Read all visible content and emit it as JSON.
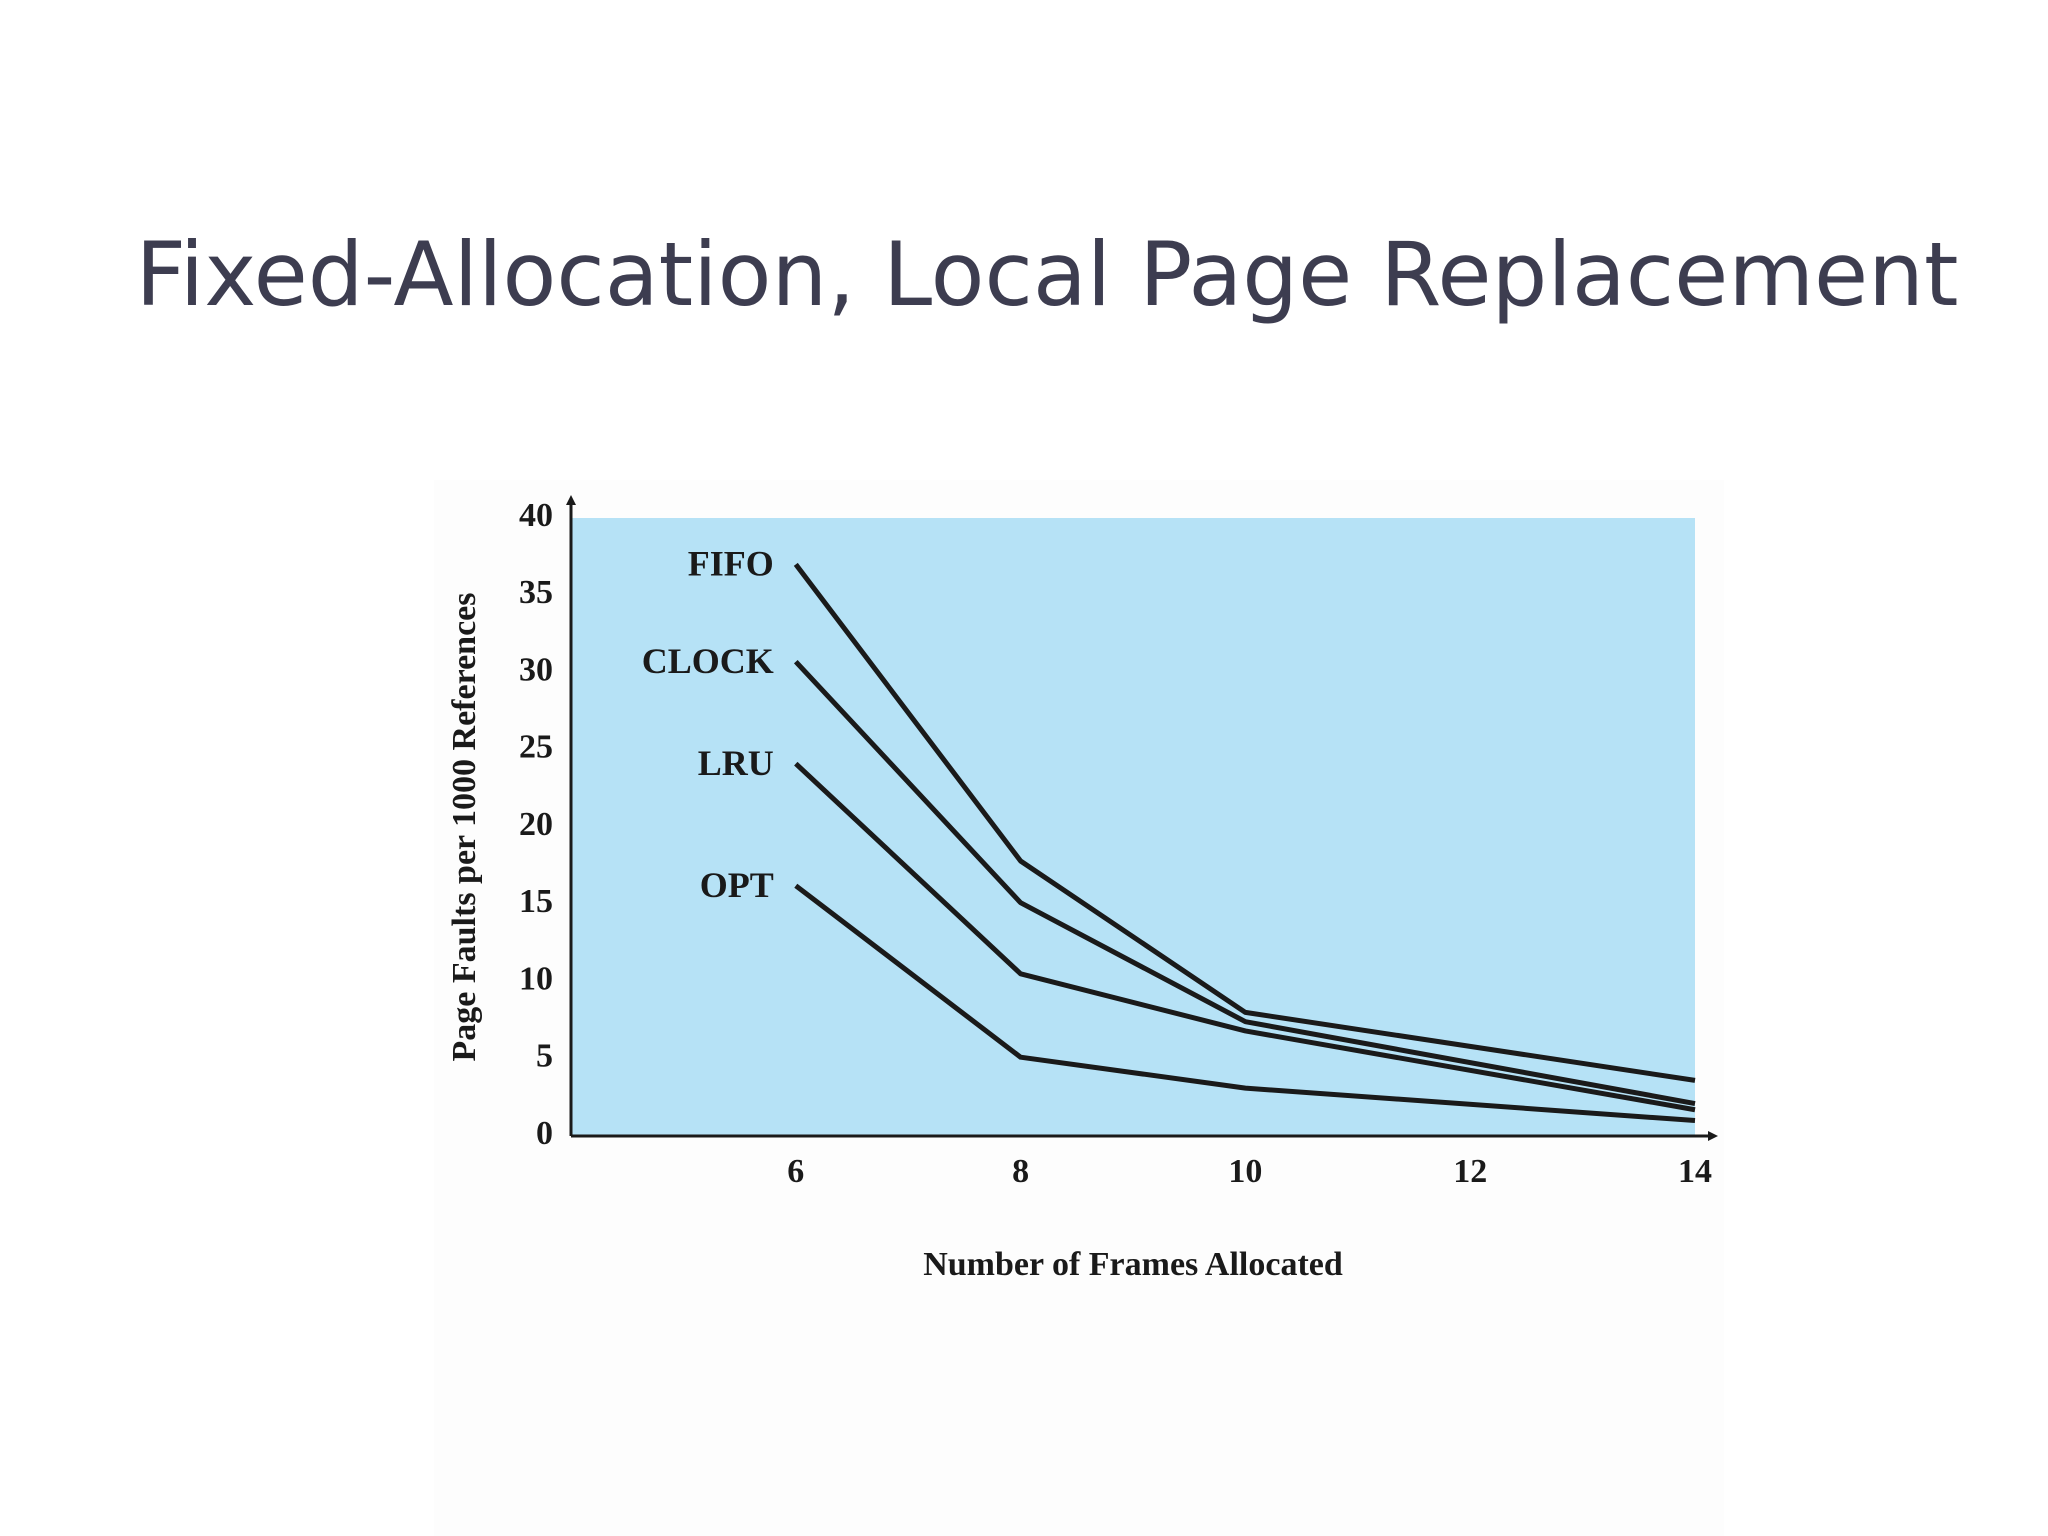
{
  "chart_data": {
    "type": "line",
    "title": "Fixed-Allocation, Local Page Replacement",
    "x_label": "Number of Frames Allocated",
    "y_label": "Page Faults per 1000 References",
    "x": [
      6,
      8,
      10,
      14
    ],
    "series": [
      {
        "name": "FIFO",
        "color": "#1a1a1a",
        "values": [
          37.0,
          17.8,
          8.0,
          3.6
        ]
      },
      {
        "name": "CLOCK",
        "color": "#1a1a1a",
        "values": [
          30.7,
          15.1,
          7.4,
          2.1
        ]
      },
      {
        "name": "LRU",
        "color": "#1a1a1a",
        "values": [
          24.1,
          10.5,
          6.8,
          1.7
        ]
      },
      {
        "name": "OPT",
        "color": "#1a1a1a",
        "values": [
          16.2,
          5.1,
          3.1,
          1.0
        ]
      }
    ],
    "xlim": [
      4,
      14
    ],
    "xticks": [
      6,
      8,
      10,
      12,
      14
    ],
    "ylim": [
      0,
      40
    ],
    "yticks": [
      0,
      5,
      10,
      15,
      20,
      25,
      30,
      35,
      40
    ],
    "plot_background": "#b6e2f6",
    "grid": false
  }
}
